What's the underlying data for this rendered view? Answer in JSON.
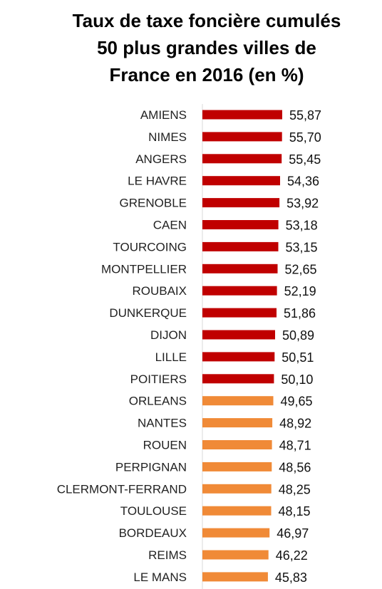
{
  "chart_data": {
    "type": "bar",
    "orientation": "horizontal",
    "title_lines": [
      "Taux de taxe foncière cumulés",
      "50 plus grandes villes de",
      "France en 2016 (en %)"
    ],
    "categories": [
      "AMIENS",
      "NIMES",
      "ANGERS",
      "LE HAVRE",
      "GRENOBLE",
      "CAEN",
      "TOURCOING",
      "MONTPELLIER",
      "ROUBAIX",
      "DUNKERQUE",
      "DIJON",
      "LILLE",
      "POITIERS",
      "ORLEANS",
      "NANTES",
      "ROUEN",
      "PERPIGNAN",
      "CLERMONT-FERRAND",
      "TOULOUSE",
      "BORDEAUX",
      "REIMS",
      "LE MANS"
    ],
    "values": [
      55.87,
      55.7,
      55.45,
      54.36,
      53.92,
      53.18,
      53.15,
      52.65,
      52.19,
      51.86,
      50.89,
      50.51,
      50.1,
      49.65,
      48.92,
      48.71,
      48.56,
      48.25,
      48.15,
      46.97,
      46.22,
      45.83
    ],
    "value_labels": [
      "55,87",
      "55,70",
      "55,45",
      "54,36",
      "53,92",
      "53,18",
      "53,15",
      "52,65",
      "52,19",
      "51,86",
      "50,89",
      "50,51",
      "50,10",
      "49,65",
      "48,92",
      "48,71",
      "48,56",
      "48,25",
      "48,15",
      "46,97",
      "46,22",
      "45,83"
    ],
    "colors": {
      "above_50": "#c00000",
      "below_50": "#f08a37",
      "axis": "#d9d9d9"
    },
    "xlim": [
      0,
      55.87
    ],
    "grid": false,
    "legend": "none"
  }
}
